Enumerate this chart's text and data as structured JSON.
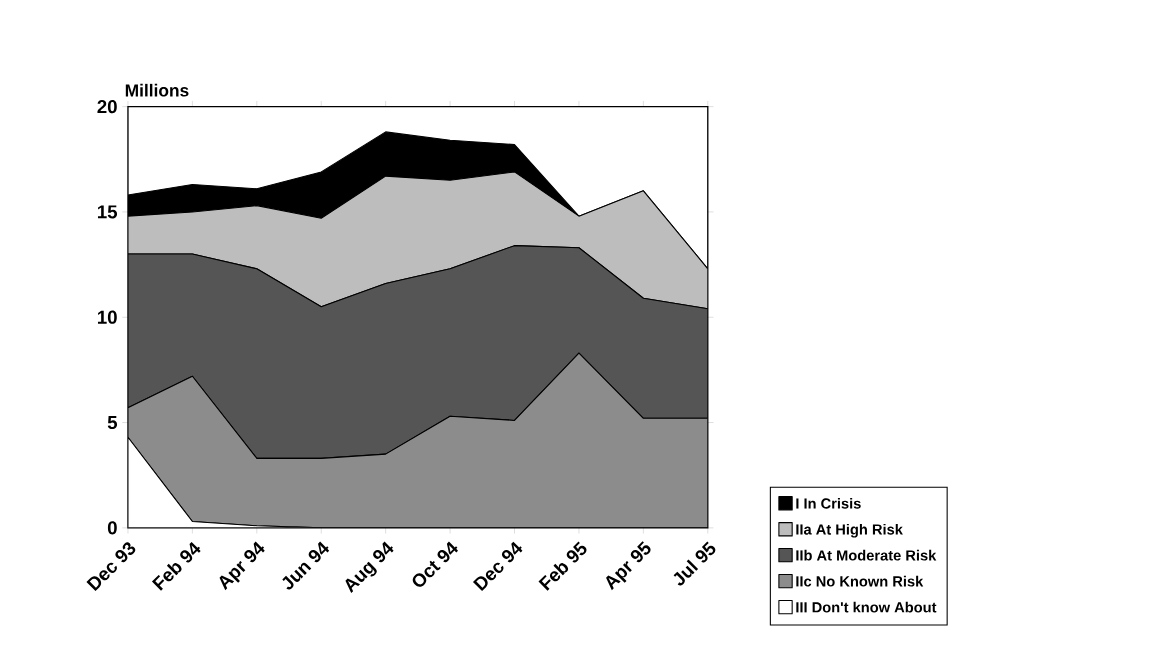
{
  "chart_data": {
    "type": "area",
    "stacked": true,
    "ylabel": "Millions",
    "categories": [
      "Dec 93",
      "Feb 94",
      "Apr 94",
      "Jun 94",
      "Aug 94",
      "Oct 94",
      "Dec 94",
      "Feb 95",
      "Apr 95",
      "Jul 95"
    ],
    "ylim": [
      0,
      20
    ],
    "yticks": [
      0,
      5,
      10,
      15,
      20
    ],
    "legend": "right",
    "series": [
      {
        "name": "III Don't know About",
        "color": "#ffffff",
        "values": [
          4.3,
          0.3,
          0.1,
          0,
          0,
          0,
          0,
          0,
          0,
          0
        ]
      },
      {
        "name": "IIc No Known Risk",
        "color": "#8c8c8c",
        "values": [
          1.4,
          6.9,
          3.2,
          3.3,
          3.5,
          5.3,
          5.1,
          8.3,
          5.2,
          5.2
        ]
      },
      {
        "name": "IIb At Moderate Risk",
        "color": "#555555",
        "values": [
          7.3,
          5.8,
          9.0,
          7.2,
          8.1,
          7.0,
          8.3,
          5.0,
          5.7,
          5.2
        ]
      },
      {
        "name": "IIa At High Risk",
        "color": "#bdbdbd",
        "values": [
          1.8,
          2.0,
          3.0,
          4.2,
          5.1,
          4.2,
          3.5,
          1.5,
          5.1,
          1.9
        ]
      },
      {
        "name": "I   In Crisis",
        "color": "#000000",
        "values": [
          1.0,
          1.3,
          0.8,
          2.2,
          2.1,
          1.9,
          1.3,
          0,
          0,
          0
        ]
      }
    ]
  }
}
